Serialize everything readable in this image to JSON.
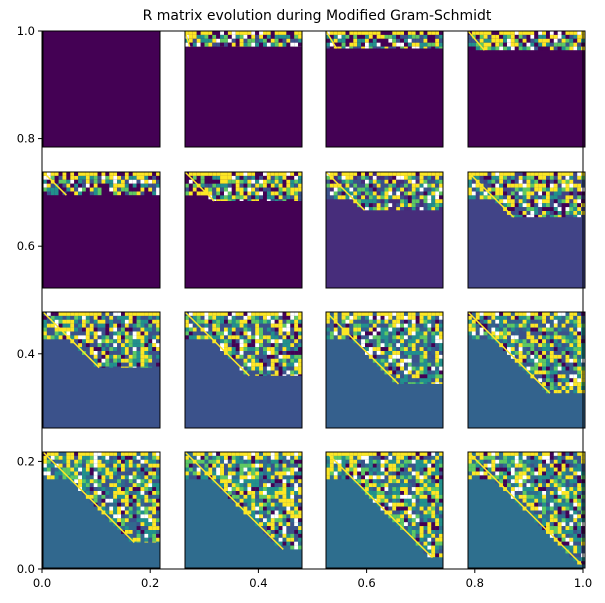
{
  "chart_data": {
    "type": "heatmap",
    "title": "R matrix evolution during Modified Gram-Schmidt",
    "xlabel": "",
    "ylabel": "",
    "xlim": [
      0.0,
      1.0
    ],
    "ylim": [
      0.0,
      1.0
    ],
    "x_ticks": [
      "0.0",
      "0.2",
      "0.4",
      "0.6",
      "0.8",
      "1.0"
    ],
    "y_ticks": [
      "0.0",
      "0.2",
      "0.4",
      "0.6",
      "0.8",
      "1.0"
    ],
    "grid": false,
    "colormap": "viridis",
    "layout": {
      "rows": 4,
      "cols": 4
    },
    "panels": [
      {
        "step": 0,
        "triangle_fraction": 0.0,
        "fill_color": "#440154"
      },
      {
        "step": 1,
        "triangle_fraction": 0.04,
        "fill_color": "#440154"
      },
      {
        "step": 2,
        "triangle_fraction": 0.09,
        "fill_color": "#440154"
      },
      {
        "step": 3,
        "triangle_fraction": 0.14,
        "fill_color": "#440154"
      },
      {
        "step": 4,
        "triangle_fraction": 0.2,
        "fill_color": "#440154"
      },
      {
        "step": 5,
        "triangle_fraction": 0.25,
        "fill_color": "#440154"
      },
      {
        "step": 6,
        "triangle_fraction": 0.33,
        "fill_color": "#472d7b"
      },
      {
        "step": 7,
        "triangle_fraction": 0.39,
        "fill_color": "#414487"
      },
      {
        "step": 8,
        "triangle_fraction": 0.48,
        "fill_color": "#3b528b"
      },
      {
        "step": 9,
        "triangle_fraction": 0.55,
        "fill_color": "#3b528b"
      },
      {
        "step": 10,
        "triangle_fraction": 0.62,
        "fill_color": "#35608d"
      },
      {
        "step": 11,
        "triangle_fraction": 0.7,
        "fill_color": "#33638d"
      },
      {
        "step": 12,
        "triangle_fraction": 0.78,
        "fill_color": "#31688e"
      },
      {
        "step": 13,
        "triangle_fraction": 0.84,
        "fill_color": "#2f6c8e"
      },
      {
        "step": 14,
        "triangle_fraction": 0.91,
        "fill_color": "#2e6e8e"
      },
      {
        "step": 15,
        "triangle_fraction": 0.97,
        "fill_color": "#2e6f8e"
      }
    ],
    "noise_colors": [
      "#440154",
      "#3b528b",
      "#21918c",
      "#5ec962",
      "#fde725",
      "#ffffff",
      "#2c728e",
      "#27ad81"
    ]
  }
}
